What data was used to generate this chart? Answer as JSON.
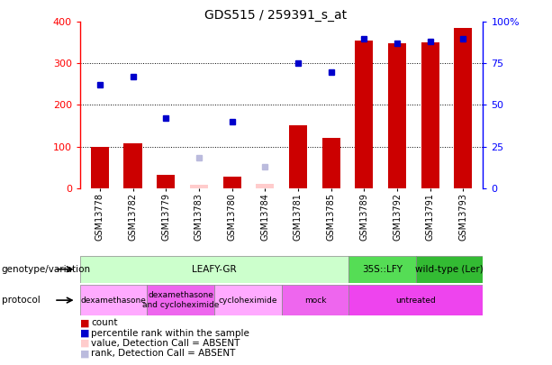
{
  "title": "GDS515 / 259391_s_at",
  "samples": [
    "GSM13778",
    "GSM13782",
    "GSM13779",
    "GSM13783",
    "GSM13780",
    "GSM13784",
    "GSM13781",
    "GSM13785",
    "GSM13789",
    "GSM13792",
    "GSM13791",
    "GSM13793"
  ],
  "count_values": [
    98,
    107,
    32,
    8,
    28,
    10,
    150,
    120,
    355,
    348,
    350,
    385
  ],
  "count_absent": [
    false,
    false,
    false,
    true,
    false,
    true,
    false,
    false,
    false,
    false,
    false,
    false
  ],
  "rank_values": [
    62,
    67,
    42,
    null,
    40,
    null,
    75,
    70,
    90,
    87,
    88,
    90
  ],
  "rank_absent_values": [
    null,
    null,
    null,
    18,
    null,
    13,
    null,
    null,
    null,
    null,
    null,
    null
  ],
  "count_absent_values": [
    null,
    null,
    null,
    2,
    null,
    2,
    null,
    null,
    null,
    null,
    null,
    null
  ],
  "ylim_left": [
    0,
    400
  ],
  "ylim_right": [
    0,
    100
  ],
  "yticks_left": [
    0,
    100,
    200,
    300,
    400
  ],
  "yticks_right": [
    0,
    25,
    50,
    75,
    100
  ],
  "ytick_labels_right": [
    "0",
    "25",
    "50",
    "75",
    "100%"
  ],
  "genotype_groups": [
    {
      "label": "LEAFY-GR",
      "start": 0,
      "end": 8,
      "color": "#ccffcc"
    },
    {
      "label": "35S::LFY",
      "start": 8,
      "end": 10,
      "color": "#55dd55"
    },
    {
      "label": "wild-type (Ler)",
      "start": 10,
      "end": 12,
      "color": "#33bb33"
    }
  ],
  "protocol_groups": [
    {
      "label": "dexamethasone",
      "start": 0,
      "end": 2,
      "color": "#ffaaff"
    },
    {
      "label": "dexamethasone\nand cycloheximide",
      "start": 2,
      "end": 4,
      "color": "#ee66ee"
    },
    {
      "label": "cycloheximide",
      "start": 4,
      "end": 6,
      "color": "#ffaaff"
    },
    {
      "label": "mock",
      "start": 6,
      "end": 8,
      "color": "#ee66ee"
    },
    {
      "label": "untreated",
      "start": 8,
      "end": 12,
      "color": "#ee44ee"
    }
  ],
  "bar_color": "#cc0000",
  "rank_color": "#0000cc",
  "absent_count_color": "#ffcccc",
  "absent_rank_color": "#bbbbdd",
  "label_row1": "genotype/variation",
  "label_row2": "protocol",
  "legend_items": [
    {
      "color": "#cc0000",
      "label": "count"
    },
    {
      "color": "#0000cc",
      "label": "percentile rank within the sample"
    },
    {
      "color": "#ffcccc",
      "label": "value, Detection Call = ABSENT"
    },
    {
      "color": "#bbbbdd",
      "label": "rank, Detection Call = ABSENT"
    }
  ]
}
